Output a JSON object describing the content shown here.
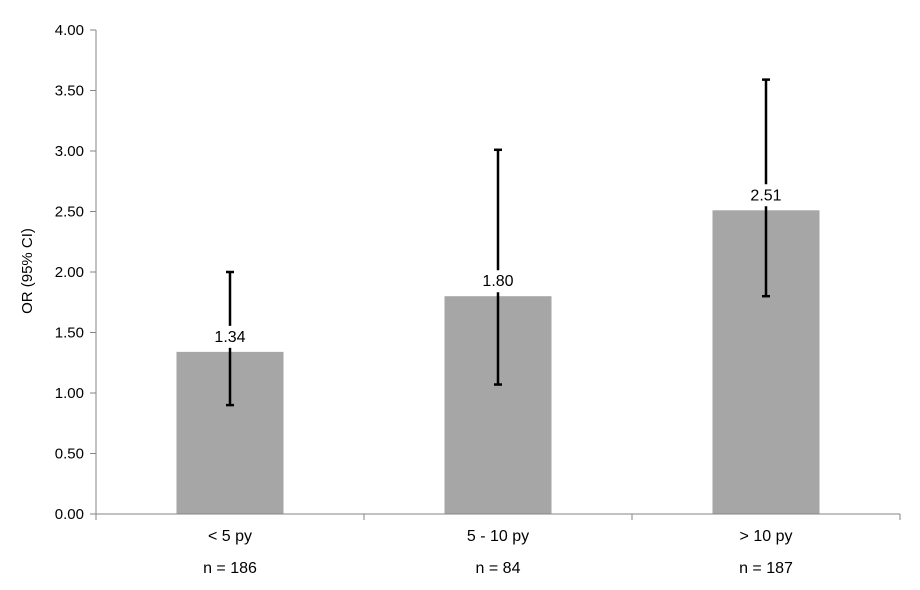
{
  "chart_data": {
    "type": "bar",
    "title": "",
    "xlabel": "",
    "ylabel": "OR (95% CI)",
    "ylim": [
      0,
      4
    ],
    "ytick_step": 0.5,
    "yticks": [
      "0.00",
      "0.50",
      "1.00",
      "1.50",
      "2.00",
      "2.50",
      "3.00",
      "3.50",
      "4.00"
    ],
    "categories": [
      "< 5 py",
      "5 - 10 py",
      "> 10 py"
    ],
    "sample_sizes": [
      "n = 186",
      "n = 84",
      "n = 187"
    ],
    "values": [
      1.34,
      1.8,
      2.51
    ],
    "value_labels": [
      "1.34",
      "1.80",
      "2.51"
    ],
    "ci_lower": [
      0.9,
      1.07,
      1.8
    ],
    "ci_upper": [
      2.0,
      3.01,
      3.59
    ],
    "grid": false,
    "legend": "none",
    "colors": {
      "bar": "#a6a6a6",
      "error_bar": "#000000",
      "axis": "#868686"
    }
  }
}
